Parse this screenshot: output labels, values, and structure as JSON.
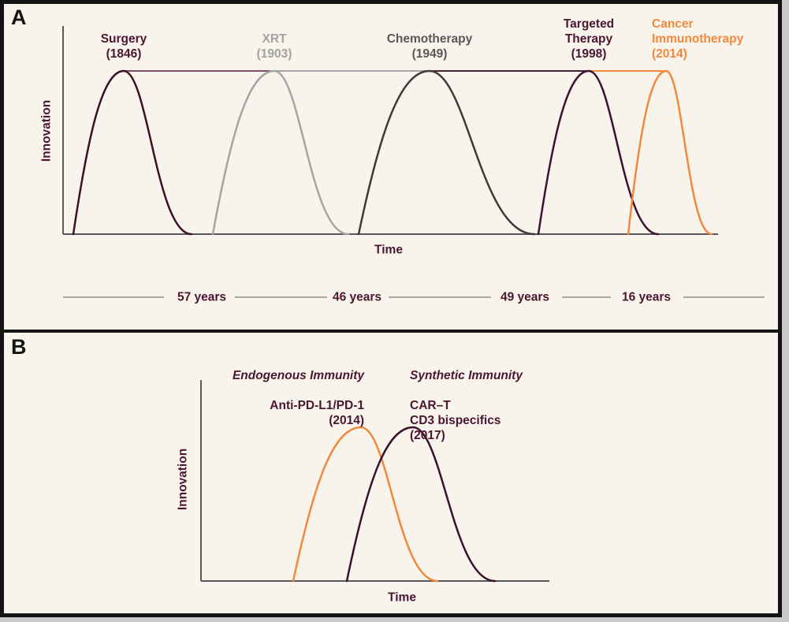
{
  "colors": {
    "background": "#f8f4ec",
    "border": "#141414",
    "text_maroon": "#4a1631",
    "axis": "#58585a",
    "timeline_line": "#8e8e8e"
  },
  "chart_data": [
    {
      "panel": "A",
      "type": "line",
      "xlabel": "Time",
      "ylabel": "Innovation",
      "series": [
        {
          "name": "Surgery",
          "year": "1846",
          "label": "Surgery\n(1846)",
          "curve_color": "#3c1126",
          "label_color": "#4a1631"
        },
        {
          "name": "XRT",
          "year": "1903",
          "label": "XRT\n(1903)",
          "curve_color": "#a5a5a7",
          "label_color": "#a2a2a5"
        },
        {
          "name": "Chemotherapy",
          "year": "1949",
          "label": "Chemotherapy\n(1949)",
          "curve_color": "#3d3a3d",
          "label_color": "#58575a"
        },
        {
          "name": "Targeted Therapy",
          "year": "1998",
          "label": "Targeted\nTherapy\n(1998)",
          "curve_color": "#3d1130",
          "label_color": "#4a1631"
        },
        {
          "name": "Cancer Immunotherapy",
          "year": "2014",
          "label": "Cancer\nImmunotherapy\n(2014)",
          "curve_color": "#f0893d",
          "label_color": "#f0893d"
        }
      ],
      "peak_line_segment_colors": [
        "#7c4e67",
        "#a5a5a7",
        "#472136",
        "#f0893d"
      ],
      "intervals_between_peaks": [
        "57 years",
        "46 years",
        "49 years",
        "16 years"
      ]
    },
    {
      "panel": "B",
      "type": "line",
      "xlabel": "Time",
      "ylabel": "Innovation",
      "series": [
        {
          "name": "Endogenous Immunity",
          "title": "Endogenous Immunity",
          "detail": "Anti-PD-L1/PD-1\n(2014)",
          "year": "2014",
          "curve_color": "#f0893d",
          "label_color": "#4a1631"
        },
        {
          "name": "Synthetic Immunity",
          "title": "Synthetic Immunity",
          "detail": "CAR–T\nCD3 bispecifics\n(2017)",
          "year": "2017",
          "curve_color": "#38122a",
          "label_color": "#4a1631"
        }
      ]
    }
  ]
}
